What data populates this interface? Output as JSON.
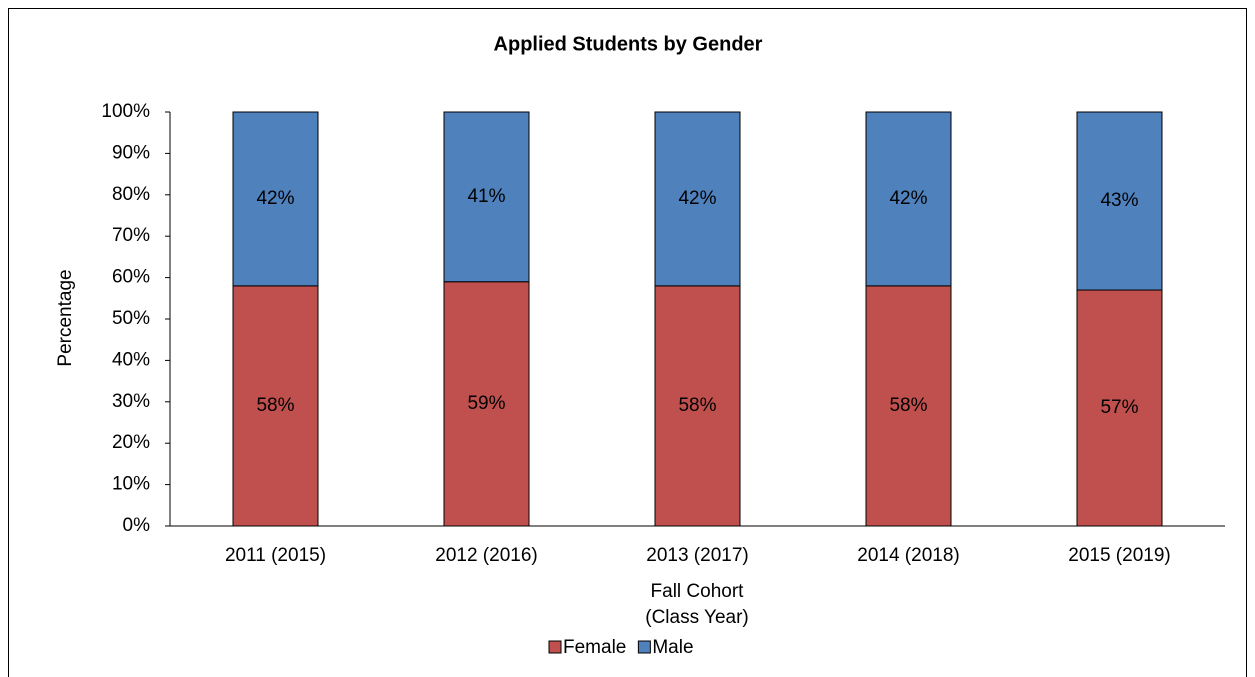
{
  "chart_data": {
    "type": "stacked_bar",
    "title": "Applied Students by Gender",
    "categories": [
      "2011 (2015)",
      "2012 (2016)",
      "2013 (2017)",
      "2014 (2018)",
      "2015 (2019)"
    ],
    "series": [
      {
        "name": "Female",
        "color": "#c0504d",
        "values": [
          58,
          59,
          58,
          58,
          57
        ],
        "value_labels": [
          "58%",
          "59%",
          "58%",
          "58%",
          "57%"
        ]
      },
      {
        "name": "Male",
        "color": "#4f81bd",
        "values": [
          42,
          41,
          42,
          42,
          43
        ],
        "value_labels": [
          "42%",
          "41%",
          "42%",
          "42%",
          "43%"
        ]
      }
    ],
    "ylim": [
      0,
      100
    ],
    "yticks": [
      {
        "value": 0,
        "label": "0%"
      },
      {
        "value": 10,
        "label": "10%"
      },
      {
        "value": 20,
        "label": "20%"
      },
      {
        "value": 30,
        "label": "30%"
      },
      {
        "value": 40,
        "label": "40%"
      },
      {
        "value": 50,
        "label": "50%"
      },
      {
        "value": 60,
        "label": "60%"
      },
      {
        "value": 70,
        "label": "70%"
      },
      {
        "value": 80,
        "label": "80%"
      },
      {
        "value": 90,
        "label": "90%"
      },
      {
        "value": 100,
        "label": "100%"
      }
    ],
    "y_label": "Percentage",
    "x_label": [
      "Fall Cohort",
      "(Class Year)"
    ],
    "grid": false,
    "legend": "bottom"
  }
}
